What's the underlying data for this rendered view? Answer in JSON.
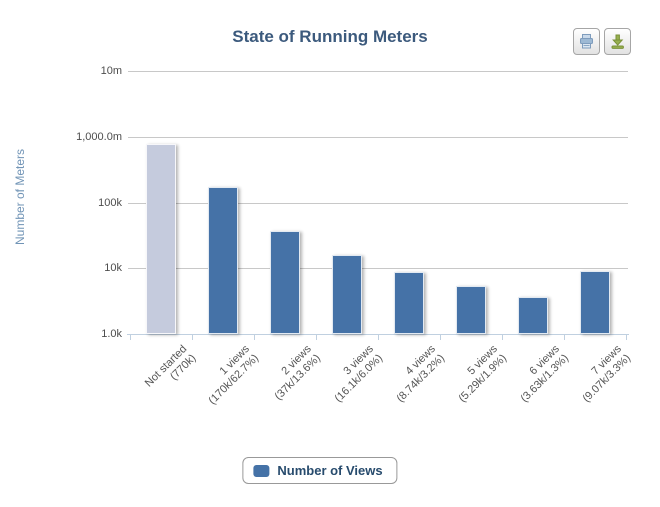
{
  "toolbar": {
    "buttons": [
      {
        "name": "print-chart",
        "icon": "printer-icon"
      },
      {
        "name": "download-chart",
        "icon": "download-icon"
      }
    ]
  },
  "chart_data": {
    "type": "bar",
    "title": "State of Running Meters",
    "xlabel": "",
    "ylabel": "Number of Meters",
    "yscale": "log",
    "ylim": [
      1000,
      10000000
    ],
    "ytick_labels": [
      "10m",
      "1,000.0m",
      "100k",
      "10k",
      "1.0k"
    ],
    "grid": true,
    "legend_position": "bottom",
    "legend_label": "Number of Views",
    "series_name": "Number of Views",
    "bars": [
      {
        "category": "Not started",
        "detail": "(770k)",
        "value": 770000,
        "color": "#C5CBDD"
      },
      {
        "category": "1 views",
        "detail": "(170k/62.7%)",
        "value": 170000,
        "color": "#4572A7"
      },
      {
        "category": "2 views",
        "detail": "(37k/13.6%)",
        "value": 37000,
        "color": "#4572A7"
      },
      {
        "category": "3 views",
        "detail": "(16.1k/6.0%)",
        "value": 16100,
        "color": "#4572A7"
      },
      {
        "category": "4 views",
        "detail": "(8.74k/3.2%)",
        "value": 8740,
        "color": "#4572A7"
      },
      {
        "category": "5 views",
        "detail": "(5.29k/1.9%)",
        "value": 5290,
        "color": "#4572A7"
      },
      {
        "category": "6 views",
        "detail": "(3.63k/1.3%)",
        "value": 3630,
        "color": "#4572A7"
      },
      {
        "category": "7 views",
        "detail": "(9.07k/3.3%)",
        "value": 9070,
        "color": "#4572A7"
      }
    ],
    "colors": {
      "bar_default": "#4572A7",
      "bar_not_started": "#C5CBDD",
      "title_text": "#3C5A7D",
      "axis_title_text": "#7194B6",
      "axis_line": "#C0D0E0",
      "gridline": "#C8C8C8",
      "tick_label_text": "#555555",
      "legend_text": "#274B6D"
    }
  }
}
